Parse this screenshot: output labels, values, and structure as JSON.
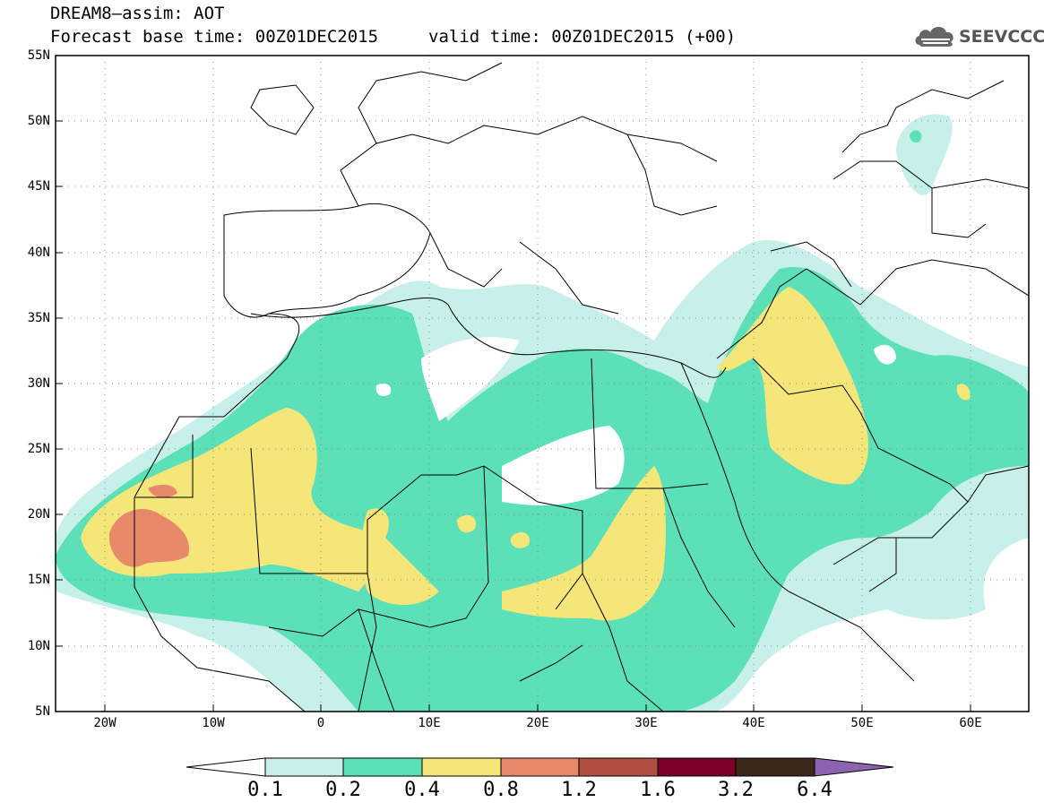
{
  "header": {
    "title_line1": "DREAM8–assim: AOT",
    "title_line2": "Forecast base time: 00Z01DEC2015",
    "title_line3": "valid time: 00Z01DEC2015 (+00)"
  },
  "logo": {
    "text": "SEEVCCC",
    "icon": "cloud-icon"
  },
  "map": {
    "lat_labels": [
      "55N",
      "50N",
      "45N",
      "40N",
      "35N",
      "30N",
      "25N",
      "20N",
      "15N",
      "10N",
      "5N"
    ],
    "lon_labels": [
      "20W",
      "10W",
      "0",
      "10E",
      "20E",
      "30E",
      "40E",
      "50E",
      "60E"
    ],
    "lat_range": [
      5,
      55
    ],
    "lon_range": [
      -25,
      65
    ],
    "grid": true
  },
  "colorbar": {
    "labels": [
      "0.1",
      "0.2",
      "0.4",
      "0.8",
      "1.2",
      "1.6",
      "3.2",
      "6.4"
    ],
    "colors": [
      "#ffffff",
      "#c8f0ea",
      "#5ce0b8",
      "#f5e67a",
      "#e8896a",
      "#b05040",
      "#7a0028",
      "#3c2818",
      "#8a64b0"
    ]
  }
}
